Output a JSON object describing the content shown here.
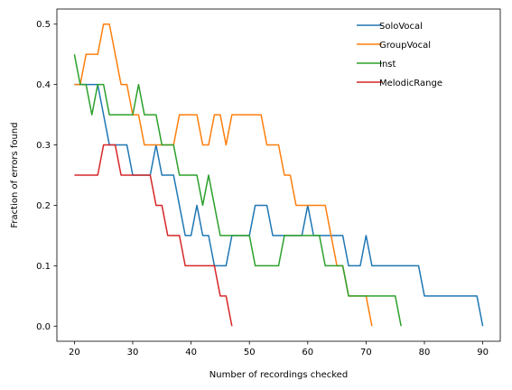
{
  "chart_data": {
    "type": "line",
    "title": "",
    "xlabel": "Number of recordings checked",
    "ylabel": "Fraction of errors found",
    "xlim": [
      17,
      93
    ],
    "ylim": [
      -0.025,
      0.525
    ],
    "xticks": [
      20,
      30,
      40,
      50,
      60,
      70,
      80,
      90
    ],
    "yticks": [
      0.0,
      0.1,
      0.2,
      0.3,
      0.4,
      0.5
    ],
    "xtick_labels": [
      "20",
      "30",
      "40",
      "50",
      "60",
      "70",
      "80",
      "90"
    ],
    "ytick_labels": [
      "0.0",
      "0.1",
      "0.2",
      "0.3",
      "0.4",
      "0.5"
    ],
    "grid": false,
    "legend_position": "top-right",
    "series": [
      {
        "name": "SoloVocal",
        "color": "#1f77b4",
        "x": [
          20,
          21,
          22,
          23,
          24,
          25,
          26,
          27,
          28,
          29,
          30,
          31,
          32,
          33,
          34,
          35,
          36,
          37,
          38,
          39,
          40,
          41,
          42,
          43,
          44,
          45,
          46,
          47,
          48,
          49,
          50,
          51,
          52,
          53,
          54,
          55,
          56,
          57,
          58,
          59,
          60,
          61,
          62,
          63,
          64,
          65,
          66,
          67,
          68,
          69,
          70,
          71,
          72,
          73,
          74,
          75,
          76,
          77,
          78,
          79,
          80,
          81,
          82,
          83,
          84,
          85,
          86,
          87,
          88,
          89,
          90
        ],
        "y": [
          0.4,
          0.4,
          0.4,
          0.4,
          0.4,
          0.35,
          0.3,
          0.3,
          0.3,
          0.3,
          0.25,
          0.25,
          0.25,
          0.25,
          0.3,
          0.25,
          0.25,
          0.25,
          0.2,
          0.15,
          0.15,
          0.2,
          0.15,
          0.15,
          0.1,
          0.1,
          0.1,
          0.15,
          0.15,
          0.15,
          0.15,
          0.2,
          0.2,
          0.2,
          0.15,
          0.15,
          0.15,
          0.15,
          0.15,
          0.15,
          0.2,
          0.15,
          0.15,
          0.15,
          0.15,
          0.15,
          0.15,
          0.1,
          0.1,
          0.1,
          0.15,
          0.1,
          0.1,
          0.1,
          0.1,
          0.1,
          0.1,
          0.1,
          0.1,
          0.1,
          0.05,
          0.05,
          0.05,
          0.05,
          0.05,
          0.05,
          0.05,
          0.05,
          0.05,
          0.05,
          0.0
        ]
      },
      {
        "name": "GroupVocal",
        "color": "#ff7f0e",
        "x": [
          20,
          21,
          22,
          23,
          24,
          25,
          26,
          27,
          28,
          29,
          30,
          31,
          32,
          33,
          34,
          35,
          36,
          37,
          38,
          39,
          40,
          41,
          42,
          43,
          44,
          45,
          46,
          47,
          48,
          49,
          50,
          51,
          52,
          53,
          54,
          55,
          56,
          57,
          58,
          59,
          60,
          61,
          62,
          63,
          64,
          65,
          66,
          67,
          68,
          69,
          70,
          71
        ],
        "y": [
          0.4,
          0.4,
          0.45,
          0.45,
          0.45,
          0.5,
          0.5,
          0.45,
          0.4,
          0.4,
          0.35,
          0.35,
          0.3,
          0.3,
          0.3,
          0.3,
          0.3,
          0.3,
          0.35,
          0.35,
          0.35,
          0.35,
          0.3,
          0.3,
          0.35,
          0.35,
          0.3,
          0.35,
          0.35,
          0.35,
          0.35,
          0.35,
          0.35,
          0.3,
          0.3,
          0.3,
          0.25,
          0.25,
          0.2,
          0.2,
          0.2,
          0.2,
          0.2,
          0.2,
          0.15,
          0.1,
          0.1,
          0.05,
          0.05,
          0.05,
          0.05,
          0.0
        ]
      },
      {
        "name": "Inst",
        "color": "#2ca02c",
        "x": [
          20,
          21,
          22,
          23,
          24,
          25,
          26,
          27,
          28,
          29,
          30,
          31,
          32,
          33,
          34,
          35,
          36,
          37,
          38,
          39,
          40,
          41,
          42,
          43,
          44,
          45,
          46,
          47,
          48,
          49,
          50,
          51,
          52,
          53,
          54,
          55,
          56,
          57,
          58,
          59,
          60,
          61,
          62,
          63,
          64,
          65,
          66,
          67,
          68,
          69,
          70,
          71,
          72,
          73,
          74,
          75,
          76
        ],
        "y": [
          0.45,
          0.4,
          0.4,
          0.35,
          0.4,
          0.4,
          0.35,
          0.35,
          0.35,
          0.35,
          0.35,
          0.4,
          0.35,
          0.35,
          0.35,
          0.3,
          0.3,
          0.3,
          0.25,
          0.25,
          0.25,
          0.25,
          0.2,
          0.25,
          0.2,
          0.15,
          0.15,
          0.15,
          0.15,
          0.15,
          0.15,
          0.1,
          0.1,
          0.1,
          0.1,
          0.1,
          0.15,
          0.15,
          0.15,
          0.15,
          0.15,
          0.15,
          0.15,
          0.1,
          0.1,
          0.1,
          0.1,
          0.05,
          0.05,
          0.05,
          0.05,
          0.05,
          0.05,
          0.05,
          0.05,
          0.05,
          0.0
        ]
      },
      {
        "name": "MelodicRange",
        "color": "#d62728",
        "x": [
          20,
          21,
          22,
          23,
          24,
          25,
          26,
          27,
          28,
          29,
          30,
          31,
          32,
          33,
          34,
          35,
          36,
          37,
          38,
          39,
          40,
          41,
          42,
          43,
          44,
          45,
          46,
          47
        ],
        "y": [
          0.25,
          0.25,
          0.25,
          0.25,
          0.25,
          0.3,
          0.3,
          0.3,
          0.25,
          0.25,
          0.25,
          0.25,
          0.25,
          0.25,
          0.2,
          0.2,
          0.15,
          0.15,
          0.15,
          0.1,
          0.1,
          0.1,
          0.1,
          0.1,
          0.1,
          0.05,
          0.05,
          0.0
        ]
      }
    ]
  }
}
